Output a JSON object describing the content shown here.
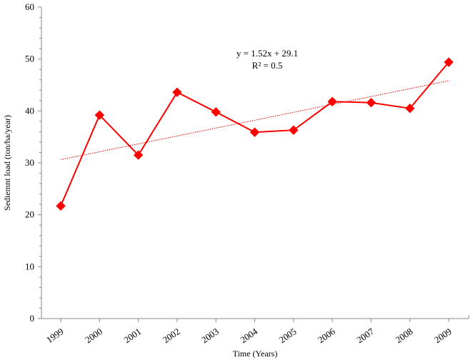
{
  "chart_data": {
    "type": "line",
    "title": "",
    "xlabel": "Time (Years)",
    "ylabel": "Sediemnt load (ton/ha/year)",
    "categories": [
      "1999",
      "2000",
      "2001",
      "2002",
      "2003",
      "2004",
      "2005",
      "2006",
      "2007",
      "2008",
      "2009"
    ],
    "series": [
      {
        "values": [
          21.7,
          39.2,
          31.5,
          43.6,
          39.8,
          35.9,
          36.3,
          41.8,
          41.6,
          40.5,
          49.4
        ],
        "color": "#ff0000",
        "marker": "diamond"
      }
    ],
    "trendline": {
      "type": "linear",
      "slope": 1.52,
      "intercept": 29.1,
      "style": "dotted",
      "color": "#ff0000",
      "equation": "y = 1.52x + 29.1",
      "r_squared": "R² = 0.5"
    },
    "ylim": [
      0,
      60
    ],
    "yticks": [
      "0",
      "10",
      "20",
      "30",
      "40",
      "50",
      "60"
    ],
    "grid": false,
    "legend": "none"
  }
}
